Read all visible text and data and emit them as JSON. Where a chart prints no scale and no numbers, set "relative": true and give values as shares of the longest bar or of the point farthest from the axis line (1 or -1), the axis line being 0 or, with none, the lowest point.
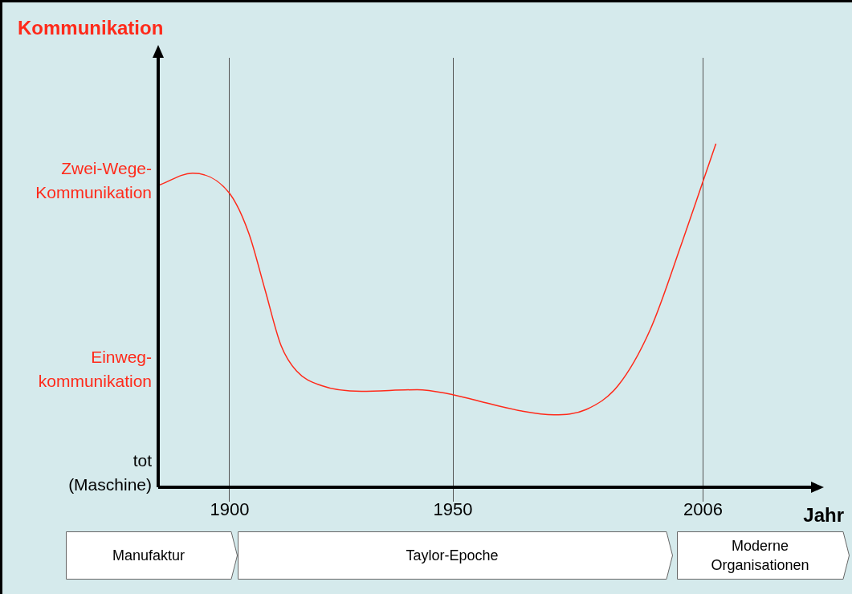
{
  "chart_data": {
    "type": "line",
    "relative": true,
    "xlabel": "Jahr",
    "x": [
      1884,
      1891.7,
      1900,
      1904.3,
      1907.9,
      1911.5,
      1915,
      1920.5,
      1929.5,
      1942,
      1948.7,
      1956.4,
      1965.4,
      1972.6,
      1979.8,
      1987,
      1994.2,
      2001.4,
      2006,
      2008.9
    ],
    "series": [
      {
        "color": "#ff2a1a",
        "values": [
          0.878,
          0.914,
          0.855,
          0.739,
          0.576,
          0.413,
          0.338,
          0.296,
          0.279,
          0.284,
          0.273,
          0.249,
          0.222,
          0.211,
          0.226,
          0.296,
          0.459,
          0.716,
          0.89,
          1
        ]
      }
    ],
    "xlim": [
      1884,
      2032
    ],
    "xticks": [
      1900,
      1950,
      2006
    ],
    "grid": "x",
    "marker": "none",
    "line_style": "solid",
    "annotations": [
      "Kommunikation",
      "tot\n(Maschine)",
      "Einweg-\nkommunikation",
      "Zwei-Wege-\nKommunikation",
      "Manufaktur",
      "Taylor-Epoche",
      "Moderne\nOrganisationen"
    ]
  }
}
